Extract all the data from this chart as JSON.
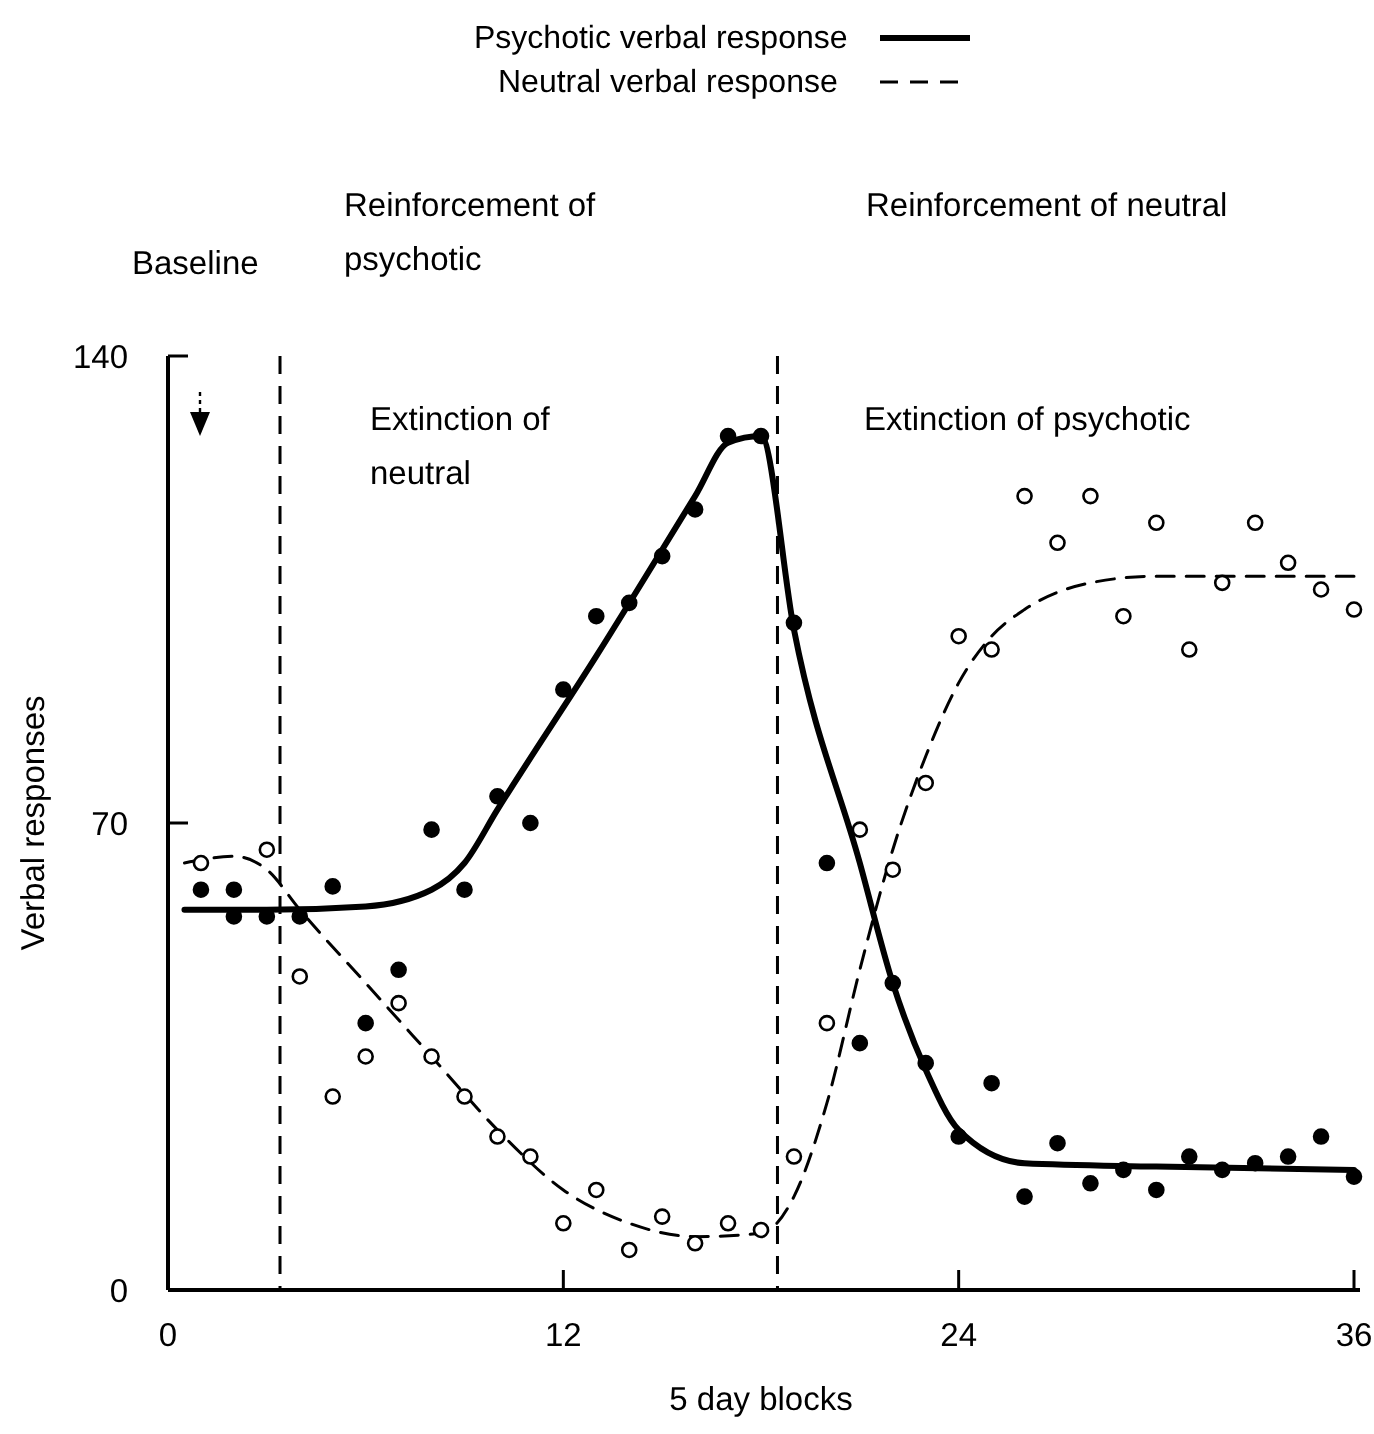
{
  "chart_data": {
    "type": "line",
    "xlabel": "5 day blocks",
    "ylabel": "Verbal responses",
    "xlim": [
      0,
      36
    ],
    "ylim": [
      0,
      140
    ],
    "xticks": [
      0,
      12,
      24,
      36
    ],
    "yticks": [
      0,
      70,
      140
    ],
    "grid": false,
    "legend": "top",
    "series": [
      {
        "name": "Psychotic verbal response",
        "color": "#000000",
        "line_style": "solid",
        "x": [
          0.5,
          3,
          6,
          8,
          9,
          10,
          13,
          16,
          17,
          18,
          19,
          21,
          22,
          23,
          24,
          26,
          30,
          36
        ],
        "values": [
          57,
          57,
          57.5,
          60,
          64,
          72,
          95,
          119,
          127,
          128,
          99,
          64,
          46,
          33,
          24,
          19,
          18.5,
          18
        ]
      },
      {
        "name": "Neutral verbal response",
        "color": "#000000",
        "line_style": "dashed",
        "x": [
          0.5,
          2,
          3,
          4,
          6,
          8,
          10,
          12,
          14,
          16,
          18,
          19,
          20,
          21,
          22,
          23,
          24,
          25,
          26,
          28,
          30,
          36
        ],
        "values": [
          64,
          65,
          63,
          57,
          46,
          35,
          24,
          15,
          10,
          8,
          8.5,
          14,
          28,
          48,
          66,
          80,
          91,
          98,
          102,
          106,
          107,
          107
        ]
      },
      {
        "type": "scatter",
        "color": "#000000",
        "marker": "circle",
        "x": [
          1,
          2,
          2,
          3,
          4,
          5,
          6,
          7,
          8,
          9,
          10,
          11,
          12,
          13,
          14,
          15,
          16,
          17,
          18,
          19,
          20,
          21,
          22,
          23,
          24,
          25,
          26,
          27,
          28,
          29,
          30,
          31,
          32,
          33,
          34,
          35,
          36
        ],
        "values": [
          60,
          60,
          56,
          56,
          56,
          60.5,
          40,
          48,
          69,
          60,
          74,
          70,
          90,
          101,
          103,
          110,
          117,
          128,
          128,
          100,
          64,
          37,
          46,
          34,
          23,
          31,
          14,
          22,
          16,
          18,
          15,
          20,
          18,
          19,
          20,
          23,
          17
        ]
      },
      {
        "type": "scatter",
        "color": "#ffffff",
        "marker": "circle",
        "x": [
          1,
          3,
          4,
          5,
          6,
          7,
          8,
          9,
          10,
          11,
          12,
          13,
          14,
          15,
          16,
          17,
          18,
          19,
          20,
          21,
          22,
          23,
          24,
          25,
          26,
          27,
          28,
          29,
          30,
          31,
          32,
          33,
          34,
          35,
          36
        ],
        "values": [
          64,
          66,
          47,
          29,
          35,
          43,
          35,
          29,
          23,
          20,
          10,
          15,
          6,
          11,
          7,
          10,
          9,
          20,
          40,
          69,
          63,
          76,
          98,
          96,
          119,
          112,
          119,
          101,
          115,
          96,
          106,
          115,
          109,
          105,
          102
        ]
      }
    ],
    "ref_lines": [
      {
        "axis": "x",
        "value": 3.4,
        "line_style": "dashed"
      },
      {
        "axis": "x",
        "value": 18.5,
        "line_style": "dashed"
      }
    ],
    "annotations": [
      "Baseline",
      "Reinforcement of psychotic",
      "Reinforcement of neutral",
      "Extinction of neutral",
      "Extinction of psychotic"
    ]
  }
}
